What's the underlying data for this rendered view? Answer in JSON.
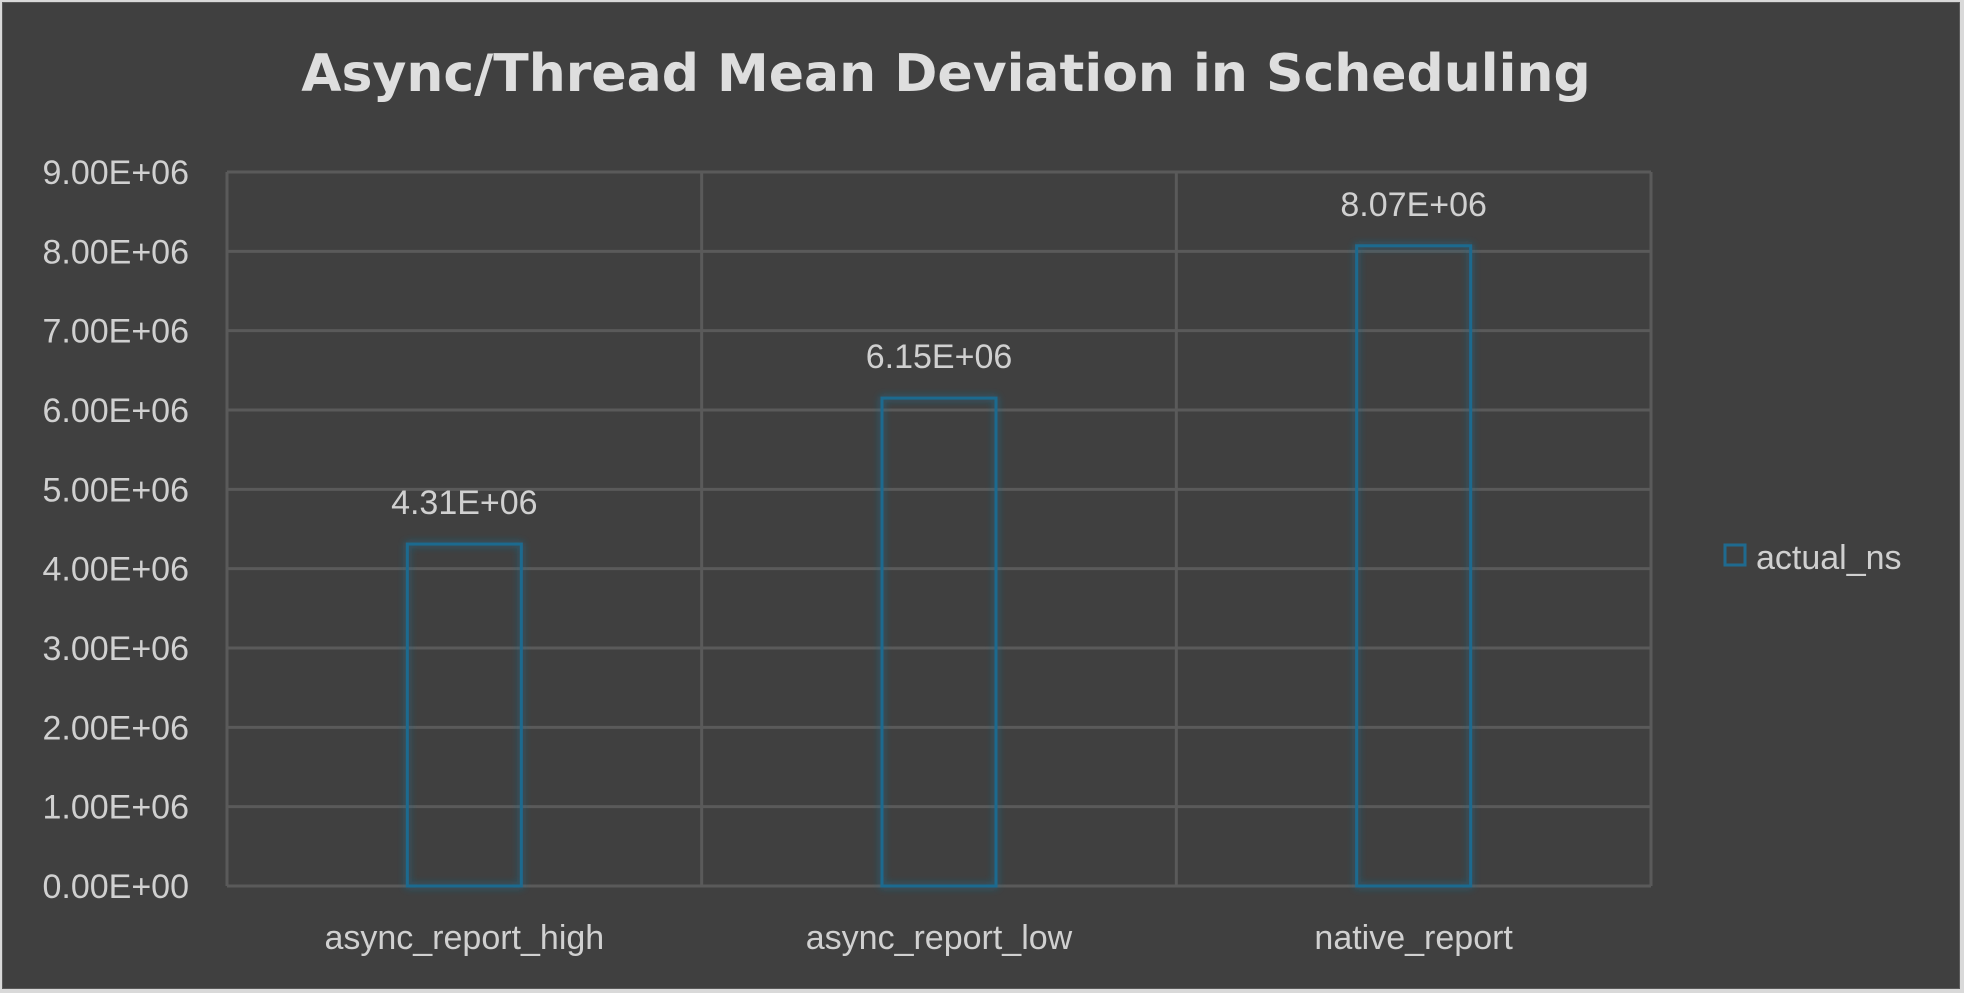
{
  "chart_data": {
    "type": "bar",
    "title": "Async/Thread Mean Deviation in Scheduling",
    "xlabel": "",
    "ylabel": "",
    "categories": [
      "async_report_high",
      "async_report_low",
      "native_report"
    ],
    "series": [
      {
        "name": "actual_ns",
        "values": [
          4310000,
          6150000,
          8070000
        ],
        "labels": [
          "4.31E+06",
          "6.15E+06",
          "8.07E+06"
        ],
        "color": "#1f6a8f"
      }
    ],
    "ylim": [
      0,
      9000000
    ],
    "yticks": [
      {
        "value": 0,
        "label": "0.00E+00"
      },
      {
        "value": 1000000,
        "label": "1.00E+06"
      },
      {
        "value": 2000000,
        "label": "2.00E+06"
      },
      {
        "value": 3000000,
        "label": "3.00E+06"
      },
      {
        "value": 4000000,
        "label": "4.00E+06"
      },
      {
        "value": 5000000,
        "label": "5.00E+06"
      },
      {
        "value": 6000000,
        "label": "6.00E+06"
      },
      {
        "value": 7000000,
        "label": "7.00E+06"
      },
      {
        "value": 8000000,
        "label": "8.00E+06"
      },
      {
        "value": 9000000,
        "label": "9.00E+06"
      }
    ],
    "grid": true,
    "legend_position": "right",
    "colors": {
      "background": "#404040",
      "grid": "#5a5a5a",
      "text": "#d0d0d0",
      "bar_outline": "#1f6a8f"
    }
  }
}
